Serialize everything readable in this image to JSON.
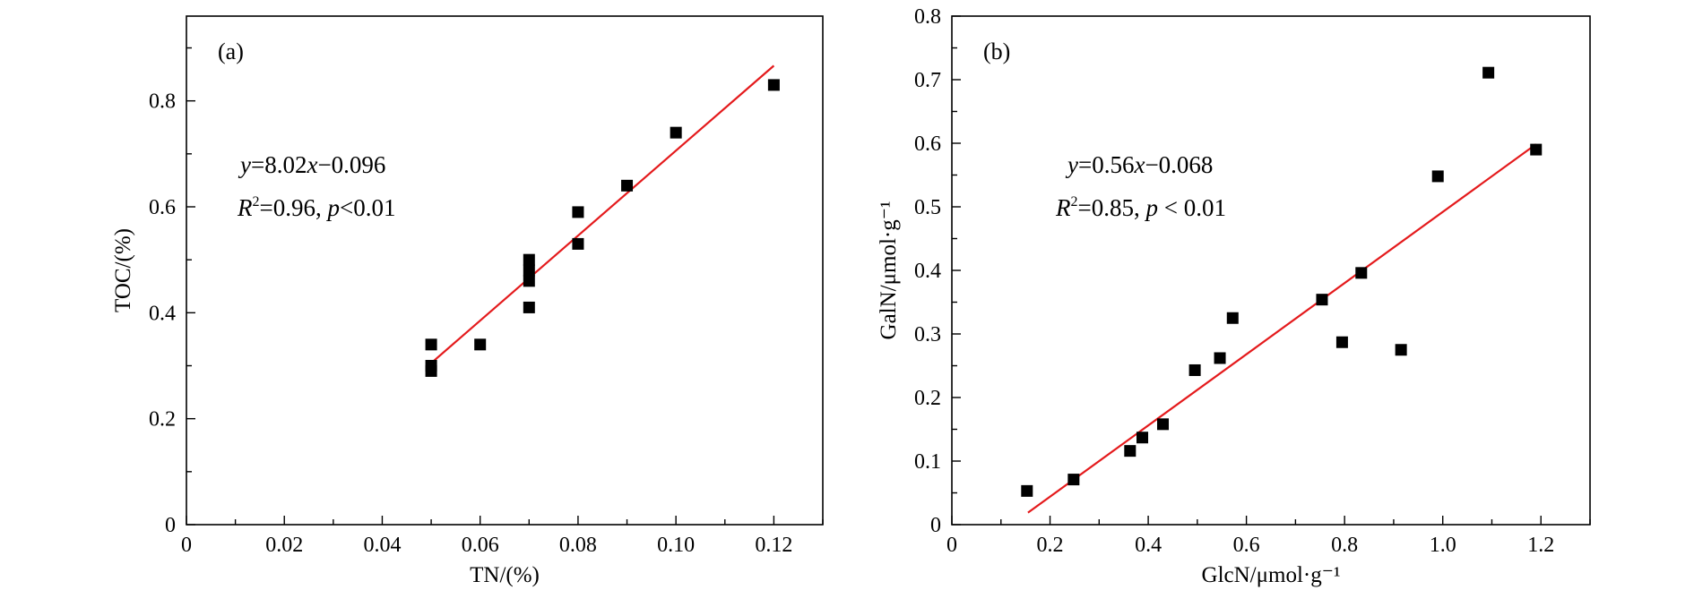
{
  "colors": {
    "fit_line": "#e41a1c",
    "marker": "#000000"
  },
  "chart_data": [
    {
      "type": "scatter",
      "panel_label": "(a)",
      "xlabel": "TN/(%)",
      "ylabel": "TOC/(%)",
      "xlim": [
        0,
        0.13
      ],
      "ylim": [
        0,
        0.96
      ],
      "xticks": [
        0,
        0.02,
        0.04,
        0.06,
        0.08,
        0.1,
        0.12
      ],
      "xtick_labels": [
        "0",
        "0.02",
        "0.04",
        "0.06",
        "0.08",
        "0.10",
        "0.12"
      ],
      "yticks": [
        0,
        0.2,
        0.4,
        0.6,
        0.8
      ],
      "ytick_labels": [
        "0",
        "0.2",
        "0.4",
        "0.6",
        "0.8"
      ],
      "fit": {
        "slope": 8.02,
        "intercept": -0.096,
        "x_range": [
          0.05,
          0.12
        ]
      },
      "equation": {
        "y_var": "y",
        "eq_mid": "=8.02",
        "x_var": "x",
        "eq_end": "−0.096"
      },
      "stats": {
        "r_var": "R",
        "r_sup": "2",
        "r_val": "=0.96, ",
        "p_var": "p",
        "p_val": "<0.01"
      },
      "points": [
        {
          "x": 0.05,
          "y": 0.34
        },
        {
          "x": 0.05,
          "y": 0.3
        },
        {
          "x": 0.05,
          "y": 0.29
        },
        {
          "x": 0.06,
          "y": 0.34
        },
        {
          "x": 0.07,
          "y": 0.5
        },
        {
          "x": 0.07,
          "y": 0.48
        },
        {
          "x": 0.07,
          "y": 0.46
        },
        {
          "x": 0.07,
          "y": 0.41
        },
        {
          "x": 0.08,
          "y": 0.59
        },
        {
          "x": 0.08,
          "y": 0.53
        },
        {
          "x": 0.09,
          "y": 0.64
        },
        {
          "x": 0.1,
          "y": 0.74
        },
        {
          "x": 0.12,
          "y": 0.83
        }
      ]
    },
    {
      "type": "scatter",
      "panel_label": "(b)",
      "xlabel": "GlcN/μmol·g⁻¹",
      "ylabel": "GalN/μmol·g⁻¹",
      "xlim": [
        0,
        1.3
      ],
      "ylim": [
        0,
        0.8
      ],
      "xticks": [
        0,
        0.2,
        0.4,
        0.6,
        0.8,
        1.0,
        1.2
      ],
      "xtick_labels": [
        "0",
        "0.2",
        "0.4",
        "0.6",
        "0.8",
        "1.0",
        "1.2"
      ],
      "yticks": [
        0,
        0.1,
        0.2,
        0.3,
        0.4,
        0.5,
        0.6,
        0.7,
        0.8
      ],
      "ytick_labels": [
        "0",
        "0.1",
        "0.2",
        "0.3",
        "0.4",
        "0.5",
        "0.6",
        "0.7",
        "0.8"
      ],
      "fit": {
        "slope": 0.56,
        "intercept": -0.068,
        "x_range": [
          0.155,
          1.19
        ]
      },
      "equation": {
        "y_var": "y",
        "eq_mid": "=0.56",
        "x_var": "x",
        "eq_end": "−0.068"
      },
      "stats": {
        "r_var": "R",
        "r_sup": "2",
        "r_val": "=0.85, ",
        "p_var": "p",
        "p_val": " < 0.01"
      },
      "points": [
        {
          "x": 0.153,
          "y": 0.053
        },
        {
          "x": 0.248,
          "y": 0.071
        },
        {
          "x": 0.363,
          "y": 0.116
        },
        {
          "x": 0.388,
          "y": 0.137
        },
        {
          "x": 0.43,
          "y": 0.158
        },
        {
          "x": 0.495,
          "y": 0.243
        },
        {
          "x": 0.546,
          "y": 0.262
        },
        {
          "x": 0.572,
          "y": 0.325
        },
        {
          "x": 0.754,
          "y": 0.354
        },
        {
          "x": 0.795,
          "y": 0.287
        },
        {
          "x": 0.834,
          "y": 0.396
        },
        {
          "x": 0.915,
          "y": 0.275
        },
        {
          "x": 0.99,
          "y": 0.548
        },
        {
          "x": 1.093,
          "y": 0.711
        },
        {
          "x": 1.19,
          "y": 0.59
        }
      ]
    }
  ]
}
